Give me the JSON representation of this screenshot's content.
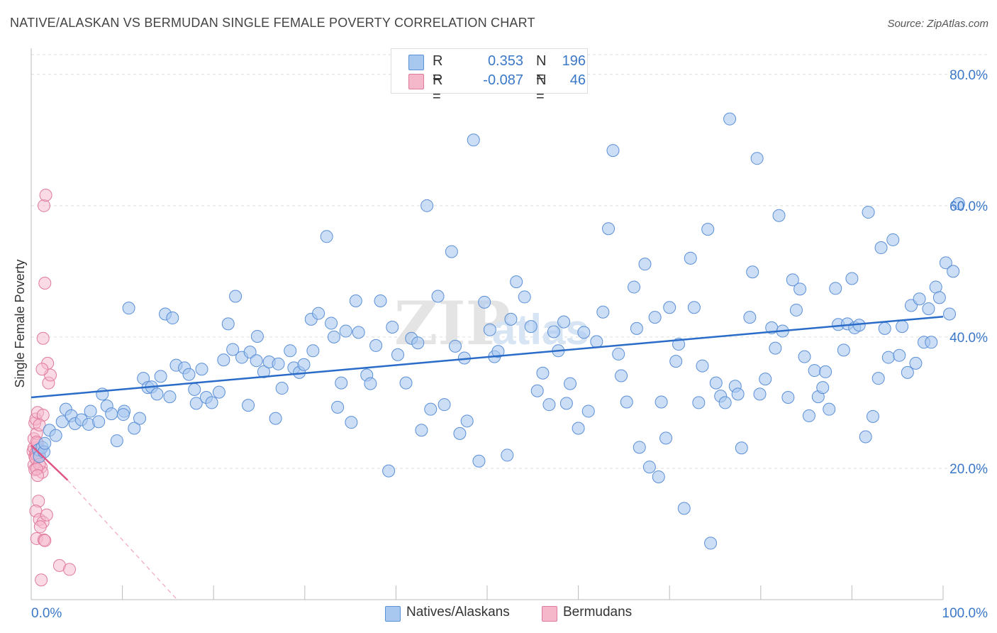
{
  "title": "NATIVE/ALASKAN VS BERMUDAN SINGLE FEMALE POVERTY CORRELATION CHART",
  "source": "Source: ZipAtlas.com",
  "watermark": "ZIPatlas",
  "legend": {
    "rows": [
      {
        "r_label": "R =",
        "r_value": "0.353",
        "n_label": "N =",
        "n_value": "196"
      },
      {
        "r_label": "R =",
        "r_value": "-0.087",
        "n_label": "N =",
        "n_value": "46"
      }
    ]
  },
  "colors": {
    "blue_fill": "#a8c8f0",
    "blue_stroke": "#5b8fd6",
    "blue_line": "#2a6cc8",
    "pink_fill": "#f5b8cb",
    "pink_stroke": "#e07a9c",
    "pink_line": "#e05585",
    "axis_text": "#3b78c8",
    "grid": "#dddddd"
  },
  "chart_data": {
    "type": "scatter",
    "title": "NATIVE/ALASKAN VS BERMUDAN SINGLE FEMALE POVERTY CORRELATION CHART",
    "xlabel": "",
    "ylabel": "Single Female Poverty",
    "xlim": [
      0,
      100
    ],
    "ylim": [
      0,
      83
    ],
    "x_tick_labels": [
      "0.0%",
      "100.0%"
    ],
    "y_ticks": [
      20,
      40,
      60,
      80
    ],
    "y_tick_labels": [
      "20.0%",
      "40.0%",
      "60.0%",
      "80.0%"
    ],
    "grid": true,
    "legend_position": "bottom",
    "series": [
      {
        "name": "Natives/Alaskans",
        "color": "#a8c8f0",
        "trend": {
          "x": [
            0,
            100
          ],
          "y": [
            30.8,
            43.1
          ]
        },
        "points": [
          [
            0.8,
            22.8
          ],
          [
            0.9,
            21.8
          ],
          [
            1.2,
            23.2
          ],
          [
            1.4,
            22.5
          ],
          [
            1.5,
            23.8
          ],
          [
            2.0,
            25.8
          ],
          [
            2.7,
            25.0
          ],
          [
            3.4,
            27.1
          ],
          [
            3.8,
            29.0
          ],
          [
            4.4,
            28.0
          ],
          [
            4.8,
            26.8
          ],
          [
            5.5,
            27.4
          ],
          [
            6.5,
            28.7
          ],
          [
            6.3,
            26.7
          ],
          [
            7.4,
            27.1
          ],
          [
            7.8,
            31.3
          ],
          [
            8.3,
            29.5
          ],
          [
            8.8,
            28.3
          ],
          [
            9.4,
            24.2
          ],
          [
            10.2,
            28.7
          ],
          [
            10.1,
            28.2
          ],
          [
            10.7,
            44.4
          ],
          [
            11.3,
            26.1
          ],
          [
            11.9,
            27.6
          ],
          [
            12.3,
            33.7
          ],
          [
            12.8,
            32.3
          ],
          [
            13.2,
            32.4
          ],
          [
            13.8,
            31.3
          ],
          [
            14.2,
            34.0
          ],
          [
            14.7,
            43.5
          ],
          [
            15.2,
            30.9
          ],
          [
            15.5,
            42.9
          ],
          [
            15.9,
            35.7
          ],
          [
            16.8,
            35.3
          ],
          [
            17.3,
            34.3
          ],
          [
            17.9,
            32.0
          ],
          [
            18.1,
            29.9
          ],
          [
            18.7,
            35.1
          ],
          [
            19.2,
            30.8
          ],
          [
            19.8,
            30.0
          ],
          [
            20.6,
            31.6
          ],
          [
            21.1,
            36.5
          ],
          [
            21.6,
            42.0
          ],
          [
            22.1,
            38.1
          ],
          [
            22.4,
            46.2
          ],
          [
            23.1,
            36.9
          ],
          [
            23.8,
            29.6
          ],
          [
            24.0,
            37.7
          ],
          [
            24.7,
            36.4
          ],
          [
            24.8,
            40.1
          ],
          [
            25.5,
            34.7
          ],
          [
            26.1,
            36.2
          ],
          [
            26.8,
            27.6
          ],
          [
            27.1,
            35.9
          ],
          [
            27.5,
            32.2
          ],
          [
            28.4,
            37.9
          ],
          [
            28.8,
            35.3
          ],
          [
            29.4,
            34.6
          ],
          [
            29.9,
            35.8
          ],
          [
            30.7,
            42.7
          ],
          [
            30.9,
            37.9
          ],
          [
            31.5,
            43.6
          ],
          [
            32.4,
            55.3
          ],
          [
            32.9,
            42.1
          ],
          [
            33.2,
            40.0
          ],
          [
            33.6,
            29.3
          ],
          [
            34.0,
            33.0
          ],
          [
            34.5,
            40.9
          ],
          [
            35.1,
            27.0
          ],
          [
            35.6,
            45.5
          ],
          [
            35.9,
            40.7
          ],
          [
            36.8,
            34.2
          ],
          [
            37.2,
            32.9
          ],
          [
            37.8,
            38.7
          ],
          [
            38.3,
            45.5
          ],
          [
            39.2,
            19.6
          ],
          [
            39.6,
            41.5
          ],
          [
            40.2,
            37.3
          ],
          [
            41.1,
            33.0
          ],
          [
            41.7,
            39.8
          ],
          [
            42.4,
            39.1
          ],
          [
            42.8,
            25.8
          ],
          [
            43.4,
            60.0
          ],
          [
            43.8,
            29.0
          ],
          [
            44.6,
            46.2
          ],
          [
            45.3,
            29.7
          ],
          [
            46.1,
            53.0
          ],
          [
            46.5,
            38.6
          ],
          [
            47.0,
            25.3
          ],
          [
            47.5,
            36.8
          ],
          [
            47.8,
            27.2
          ],
          [
            48.5,
            70.0
          ],
          [
            49.1,
            21.1
          ],
          [
            49.7,
            45.3
          ],
          [
            50.3,
            41.1
          ],
          [
            50.8,
            37.0
          ],
          [
            51.2,
            37.8
          ],
          [
            52.2,
            22.0
          ],
          [
            52.6,
            42.7
          ],
          [
            53.2,
            48.4
          ],
          [
            54.1,
            46.1
          ],
          [
            54.8,
            41.6
          ],
          [
            55.5,
            31.8
          ],
          [
            56.1,
            34.5
          ],
          [
            56.8,
            29.7
          ],
          [
            57.3,
            40.8
          ],
          [
            57.8,
            37.9
          ],
          [
            58.4,
            42.3
          ],
          [
            58.7,
            29.9
          ],
          [
            59.1,
            32.9
          ],
          [
            60.0,
            26.1
          ],
          [
            60.6,
            40.7
          ],
          [
            61.1,
            28.7
          ],
          [
            62.0,
            39.3
          ],
          [
            62.7,
            43.8
          ],
          [
            63.3,
            56.5
          ],
          [
            63.8,
            68.4
          ],
          [
            64.4,
            37.4
          ],
          [
            64.7,
            34.1
          ],
          [
            65.3,
            30.1
          ],
          [
            66.1,
            47.6
          ],
          [
            66.4,
            41.3
          ],
          [
            66.7,
            23.2
          ],
          [
            67.3,
            51.1
          ],
          [
            67.8,
            20.2
          ],
          [
            68.4,
            43.0
          ],
          [
            68.8,
            18.7
          ],
          [
            69.1,
            30.1
          ],
          [
            69.6,
            24.6
          ],
          [
            70.0,
            44.5
          ],
          [
            70.7,
            36.3
          ],
          [
            71.0,
            38.9
          ],
          [
            71.6,
            13.9
          ],
          [
            72.3,
            52.0
          ],
          [
            72.7,
            44.5
          ],
          [
            73.2,
            30.0
          ],
          [
            73.6,
            35.6
          ],
          [
            74.2,
            56.4
          ],
          [
            74.5,
            8.6
          ],
          [
            75.1,
            33.0
          ],
          [
            75.6,
            31.0
          ],
          [
            76.1,
            30.0
          ],
          [
            76.6,
            73.2
          ],
          [
            77.2,
            32.5
          ],
          [
            77.5,
            31.3
          ],
          [
            77.9,
            23.1
          ],
          [
            78.8,
            43.0
          ],
          [
            79.1,
            49.9
          ],
          [
            79.6,
            67.2
          ],
          [
            79.9,
            31.3
          ],
          [
            80.5,
            33.6
          ],
          [
            81.2,
            41.4
          ],
          [
            81.6,
            38.3
          ],
          [
            82.0,
            58.5
          ],
          [
            82.4,
            40.9
          ],
          [
            83.0,
            30.8
          ],
          [
            83.5,
            48.7
          ],
          [
            83.9,
            44.1
          ],
          [
            84.3,
            47.3
          ],
          [
            84.8,
            37.0
          ],
          [
            85.3,
            28.0
          ],
          [
            85.9,
            34.9
          ],
          [
            86.3,
            30.9
          ],
          [
            86.8,
            32.3
          ],
          [
            87.1,
            34.7
          ],
          [
            87.5,
            29.0
          ],
          [
            88.2,
            47.4
          ],
          [
            88.5,
            41.9
          ],
          [
            89.1,
            38.0
          ],
          [
            89.5,
            42.0
          ],
          [
            90.0,
            48.9
          ],
          [
            90.3,
            41.4
          ],
          [
            90.8,
            41.8
          ],
          [
            91.5,
            24.8
          ],
          [
            91.8,
            59.0
          ],
          [
            92.3,
            27.9
          ],
          [
            92.9,
            33.7
          ],
          [
            93.2,
            53.6
          ],
          [
            93.6,
            41.3
          ],
          [
            94.0,
            36.9
          ],
          [
            94.5,
            54.8
          ],
          [
            95.2,
            37.2
          ],
          [
            95.5,
            41.6
          ],
          [
            96.1,
            34.6
          ],
          [
            96.5,
            44.8
          ],
          [
            97.0,
            36.0
          ],
          [
            97.4,
            45.8
          ],
          [
            97.9,
            39.2
          ],
          [
            98.4,
            44.3
          ],
          [
            98.7,
            39.2
          ],
          [
            99.2,
            47.6
          ],
          [
            99.6,
            46.0
          ],
          [
            100.3,
            51.3
          ],
          [
            100.7,
            43.5
          ],
          [
            101.1,
            50.0
          ],
          [
            101.7,
            60.3
          ]
        ]
      },
      {
        "name": "Bermudans",
        "color": "#f5b8cb",
        "trend": {
          "x": [
            0,
            4
          ],
          "y": [
            23.5,
            18.2
          ]
        },
        "trend_extension": {
          "x": [
            4,
            16
          ],
          "y": [
            18.2,
            0
          ]
        },
        "points": [
          [
            0.2,
            22.6
          ],
          [
            0.3,
            23.1
          ],
          [
            0.4,
            21.8
          ],
          [
            0.5,
            22.3
          ],
          [
            0.3,
            20.5
          ],
          [
            0.6,
            22.0
          ],
          [
            0.4,
            19.8
          ],
          [
            0.7,
            23.2
          ],
          [
            0.5,
            21.5
          ],
          [
            0.8,
            22.9
          ],
          [
            0.3,
            24.5
          ],
          [
            0.6,
            25.3
          ],
          [
            0.4,
            26.9
          ],
          [
            0.5,
            27.5
          ],
          [
            0.7,
            28.5
          ],
          [
            0.9,
            21.9
          ],
          [
            1.0,
            22.8
          ],
          [
            1.1,
            20.2
          ],
          [
            1.2,
            19.4
          ],
          [
            0.9,
            20.6
          ],
          [
            0.6,
            19.9
          ],
          [
            0.7,
            18.9
          ],
          [
            0.8,
            15.0
          ],
          [
            0.5,
            13.5
          ],
          [
            0.9,
            12.2
          ],
          [
            1.3,
            11.8
          ],
          [
            1.0,
            11.1
          ],
          [
            0.6,
            9.3
          ],
          [
            1.4,
            9.1
          ],
          [
            1.5,
            9.0
          ],
          [
            1.7,
            12.9
          ],
          [
            1.9,
            33.0
          ],
          [
            2.1,
            34.2
          ],
          [
            1.8,
            36.0
          ],
          [
            1.2,
            35.1
          ],
          [
            1.3,
            39.8
          ],
          [
            1.5,
            48.2
          ],
          [
            1.4,
            60.0
          ],
          [
            1.6,
            61.6
          ],
          [
            3.1,
            5.2
          ],
          [
            4.2,
            4.6
          ],
          [
            1.1,
            3.0
          ],
          [
            1.3,
            28.1
          ],
          [
            0.9,
            26.6
          ],
          [
            0.7,
            23.8
          ],
          [
            0.6,
            24.0
          ]
        ]
      }
    ]
  }
}
